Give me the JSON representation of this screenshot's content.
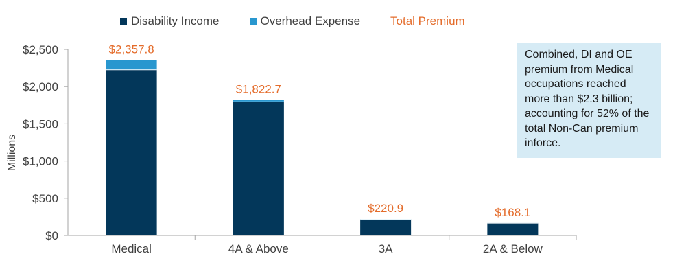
{
  "chart_data": {
    "type": "bar",
    "stacked": true,
    "categories": [
      "Medical",
      "4A & Above",
      "3A",
      "2A & Below"
    ],
    "series": [
      {
        "name": "Disability Income",
        "color": "#03375a",
        "values": [
          2225,
          1795,
          215.9,
          165.1
        ]
      },
      {
        "name": "Overhead Expense",
        "color": "#2997cf",
        "values": [
          132.8,
          27.7,
          5.0,
          3.0
        ]
      }
    ],
    "totals_label": "Total Premium",
    "totals_color": "#e46c2b",
    "totals": [
      "$2,357.8",
      "$1,822.7",
      "$220.9",
      "$168.1"
    ],
    "total_values": [
      2357.8,
      1822.7,
      220.9,
      168.1
    ],
    "ylabel": "Millions",
    "ylim": [
      0,
      2500
    ],
    "yticks": [
      0,
      500,
      1000,
      1500,
      2000,
      2500
    ],
    "ytick_labels": [
      "$0",
      "$500",
      "$1,000",
      "$1,500",
      "$2,000",
      "$2,500"
    ],
    "grid": false,
    "legend_position": "top-left"
  },
  "callout": {
    "text": "Combined, DI and OE premium from Medical occupations reached more than $2.3 billion; accounting for 52% of the total Non-Can premium inforce."
  }
}
